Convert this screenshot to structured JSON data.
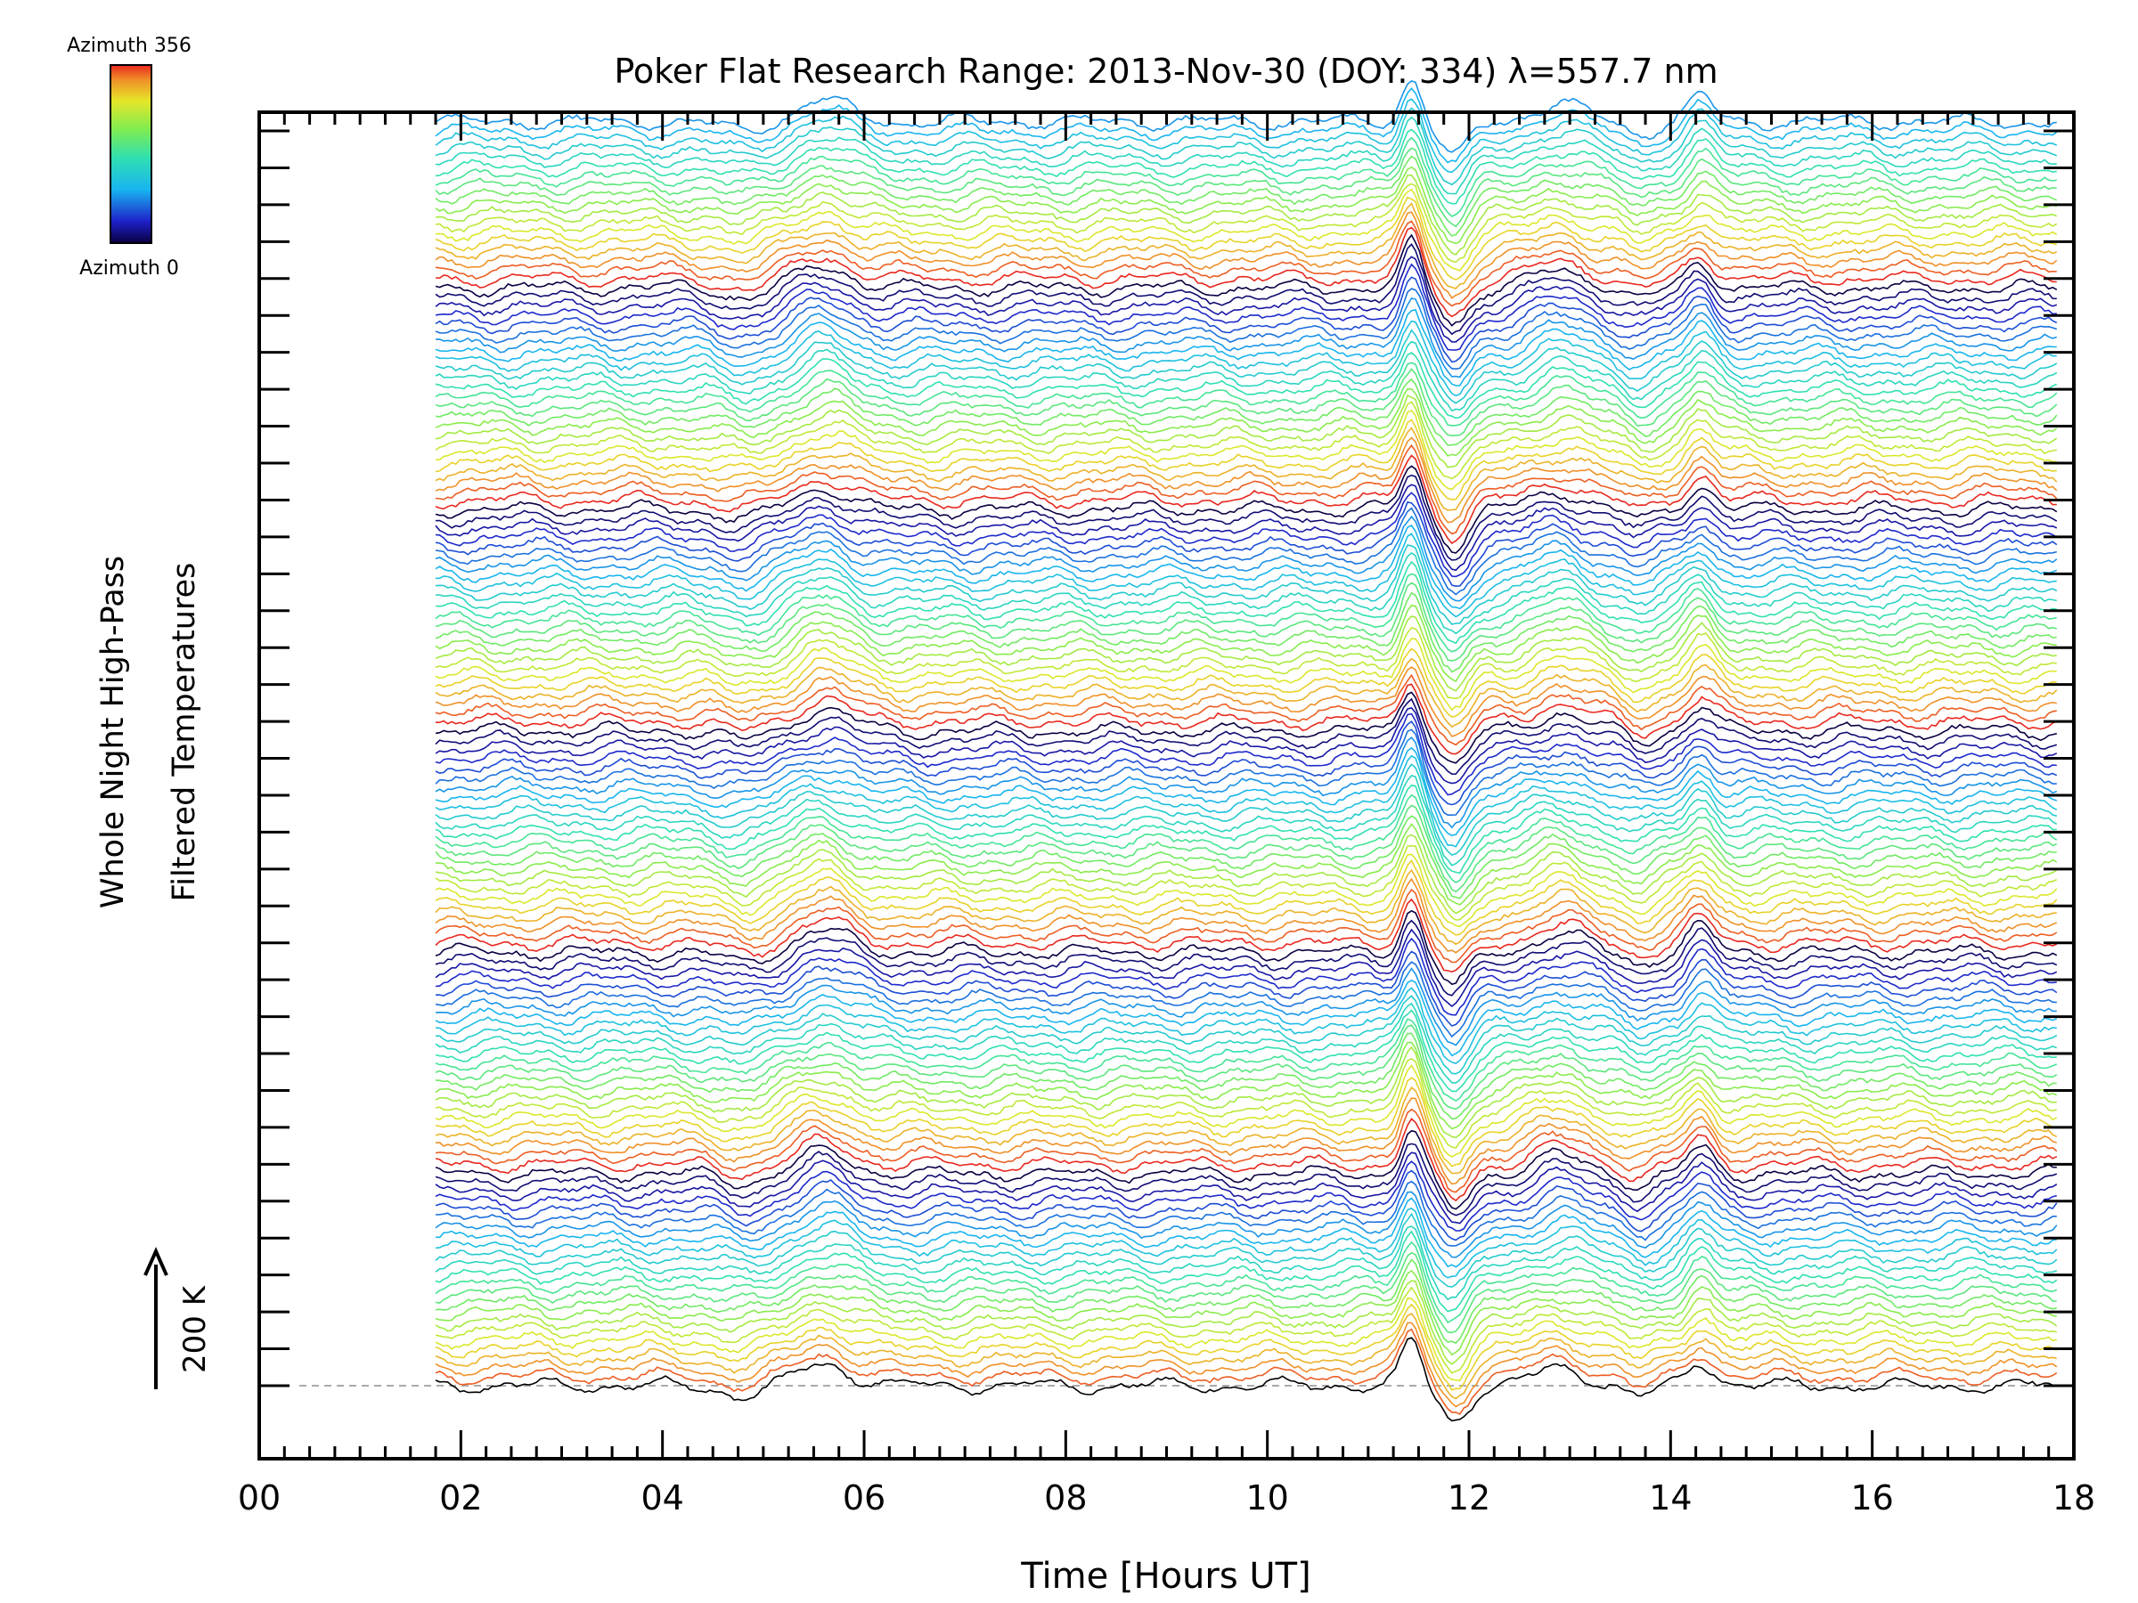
{
  "chart_data": {
    "type": "line",
    "title": "Poker Flat Research Range: 2013-Nov-30 (DOY: 334) λ=557.7 nm",
    "xlabel": "Time [Hours UT]",
    "ylabel_line1": "Whole Night High-Pass",
    "ylabel_line2": "Filtered Temperatures",
    "xlim": [
      0,
      18
    ],
    "x_ticks": [
      "00",
      "02",
      "04",
      "06",
      "08",
      "10",
      "12",
      "14",
      "16",
      "18"
    ],
    "x_tick_values": [
      0,
      2,
      4,
      6,
      8,
      10,
      12,
      14,
      16,
      18
    ],
    "scale_bar_label": "200 K",
    "scale_bar_kelvin": 200,
    "colorbar": {
      "top_label": "Azimuth 356",
      "bottom_label": "Azimuth 0",
      "min": 0,
      "max": 356
    },
    "data_time_range": [
      1.75,
      17.85
    ],
    "n_series": 144,
    "cycle_length": 24,
    "series_offset_kelvin": 14.8,
    "baseline_style": "dashed gray at series 0 offset",
    "features": [
      {
        "name": "sharp peak then dip",
        "center_hour": 11.55,
        "amplitude_kelvin": 70
      },
      {
        "name": "broad rise",
        "center_hour": 5.6,
        "amplitude_kelvin": 35
      },
      {
        "name": "peak",
        "center_hour": 14.3,
        "amplitude_kelvin": 40
      },
      {
        "name": "broad hump",
        "center_hour": 12.9,
        "amplitude_kelvin": 28
      }
    ]
  }
}
